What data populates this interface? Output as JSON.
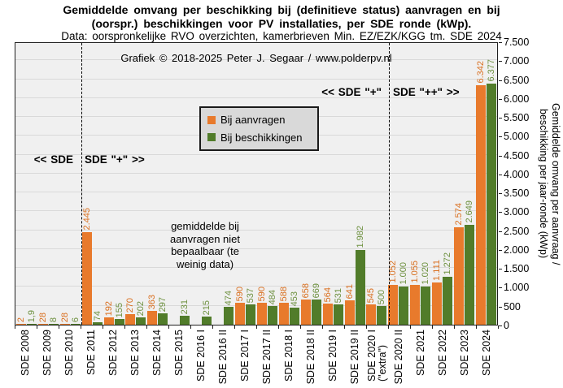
{
  "title": {
    "line1": "Gemiddelde omvang per beschikking bij (definitieve status) aanvragen en bij",
    "line2": "(oorspr.) beschikkingen voor PV installaties, per SDE ronde (kWp)."
  },
  "subtitle": "Data: oorspronkelijke RVO overzichten, kamerbrieven Min. EZ/EZK/KGG tm. SDE 2024",
  "watermark": "Grafiek © 2018-2025 Peter J. Segaar / www.polderpv.nl",
  "zones": {
    "left_a": "<< SDE",
    "left_b": "SDE \"+\" >>",
    "right_a": "<< SDE \"+\"",
    "right_b": "SDE \"++\" >>"
  },
  "annotation_lines": [
    "gemiddelde bij",
    "aanvragen niet",
    "bepaalbaar (te",
    "weinig data)"
  ],
  "legend": {
    "items": [
      {
        "label": "Bij aanvragen",
        "color": "#E87A2C"
      },
      {
        "label": "Bij beschikkingen",
        "color": "#517C2A"
      }
    ]
  },
  "colors": {
    "plot_background": "#F0F0F0",
    "gridline": "#D9D9D9",
    "aanvragen_bar": "#E87A2C",
    "aanvragen_label": "#D96F1F",
    "beschikkingen_bar": "#517C2A",
    "beschikkingen_label": "#6E9140"
  },
  "chart_data": {
    "type": "bar",
    "title": "Gemiddelde omvang per beschikking bij (definitieve status) aanvragen en bij (oorspr.) beschikkingen voor PV installaties, per SDE ronde (kWp).",
    "subtitle": "Data: oorspronkelijke RVO overzichten, kamerbrieven Min. EZ/EZK/KGG tm. SDE 2024",
    "categories": [
      "SDE 2008",
      "SDE 2009",
      "SDE 2010",
      "SDE 2011",
      "SDE 2012",
      "SDE 2013",
      "SDE 2014",
      "SDE 2015",
      "SDE 2016 I",
      "SDE 2016 II",
      "SDE 2017 I",
      "SDE 2017 II",
      "SDE 2018 I",
      "SDE 2018 II",
      "SDE 2019 I",
      "SDE 2019 II",
      "SDE 2020 I\n(\"extra\")",
      "SDE 2020 II",
      "SDE 2021",
      "SDE 2022",
      "SDE 2023",
      "SDE 2024"
    ],
    "series": [
      {
        "name": "Bij aanvragen",
        "color": "#E87A2C",
        "label_color": "#D96F1F",
        "values": [
          2,
          28,
          28,
          2445,
          192,
          270,
          363,
          null,
          null,
          null,
          590,
          590,
          588,
          658,
          564,
          641,
          545,
          1052,
          1055,
          1111,
          2574,
          6342
        ],
        "labels": [
          "2",
          "28",
          "28",
          "2.445",
          "192",
          "270",
          "363",
          "",
          "",
          "",
          "590",
          "590",
          "588",
          "658",
          "564",
          "641",
          "545",
          "1.052",
          "1.055",
          "1.111",
          "2.574",
          "6.342"
        ]
      },
      {
        "name": "Bij beschikkingen",
        "color": "#517C2A",
        "label_color": "#6E9140",
        "values": [
          1.9,
          8,
          6,
          74,
          155,
          202,
          297,
          231,
          215,
          474,
          537,
          484,
          453,
          669,
          531,
          1982,
          500,
          1000,
          1020,
          1272,
          2649,
          6377
        ],
        "labels": [
          "1,9",
          "8",
          "6",
          "74",
          "155",
          "202",
          "297",
          "231",
          "215",
          "474",
          "537",
          "484",
          "453",
          "669",
          "531",
          "1.982",
          "500",
          "1.000",
          "1.020",
          "1.272",
          "2.649",
          "6.377"
        ]
      }
    ],
    "missing_aanvragen_note": "gemiddelde bij aanvragen niet bepaalbaar (te weinig data)",
    "ylim": [
      0,
      7500
    ],
    "ytick_step": 500,
    "ytick_labels": [
      "0",
      "500",
      "1.000",
      "1.500",
      "2.000",
      "2.500",
      "3.000",
      "3.500",
      "4.000",
      "4.500",
      "5.000",
      "5.500",
      "6.000",
      "6.500",
      "7.000",
      "7.500"
    ],
    "ylabel_lines": [
      "Gemiddelde omvang per aanvraag /",
      "beschikking per jaar-ronde (kWp)"
    ],
    "grid": true,
    "legend_position": "inside-upper-middle-left",
    "dividers": [
      {
        "boundary_index": 3,
        "style": "dashed"
      },
      {
        "boundary_index": 17,
        "style": "dashed"
      }
    ]
  }
}
